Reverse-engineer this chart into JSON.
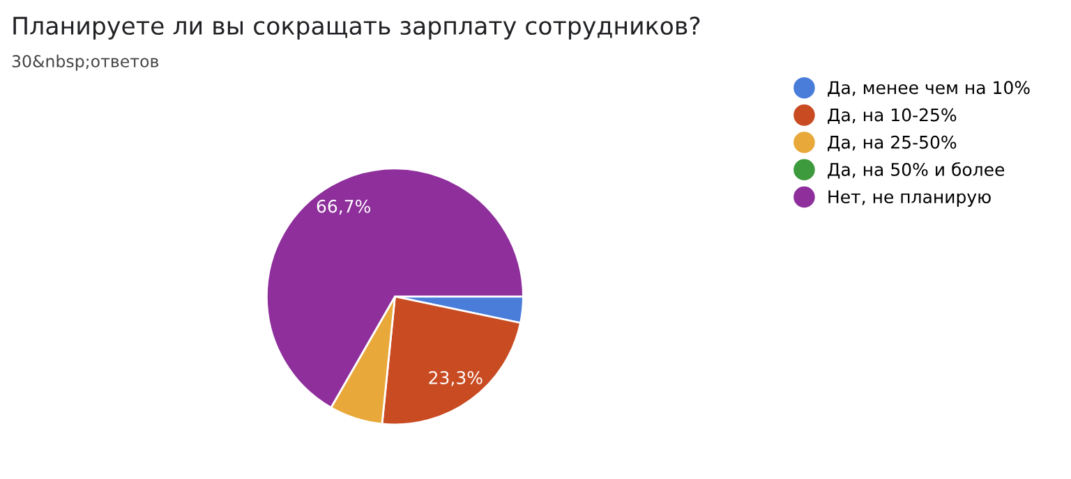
{
  "chart_data": {
    "type": "pie",
    "title": "Планируете ли вы сокращать зарплату сотрудников?",
    "subtitle": "30&nbsp;ответов",
    "categories": [
      "Да, менее чем на 10%",
      "Да, на 10-25%",
      "Да, на 25-50%",
      "Да, на 50% и более",
      "Нет, не планирую"
    ],
    "values": [
      3.3,
      23.3,
      6.7,
      0,
      66.7
    ],
    "colors": [
      "#4a7dda",
      "#c84b22",
      "#e8a83a",
      "#3d9a3d",
      "#8e2f9c"
    ],
    "value_labels": [
      null,
      "23,3%",
      null,
      null,
      "66,7%"
    ],
    "legend": "right"
  }
}
